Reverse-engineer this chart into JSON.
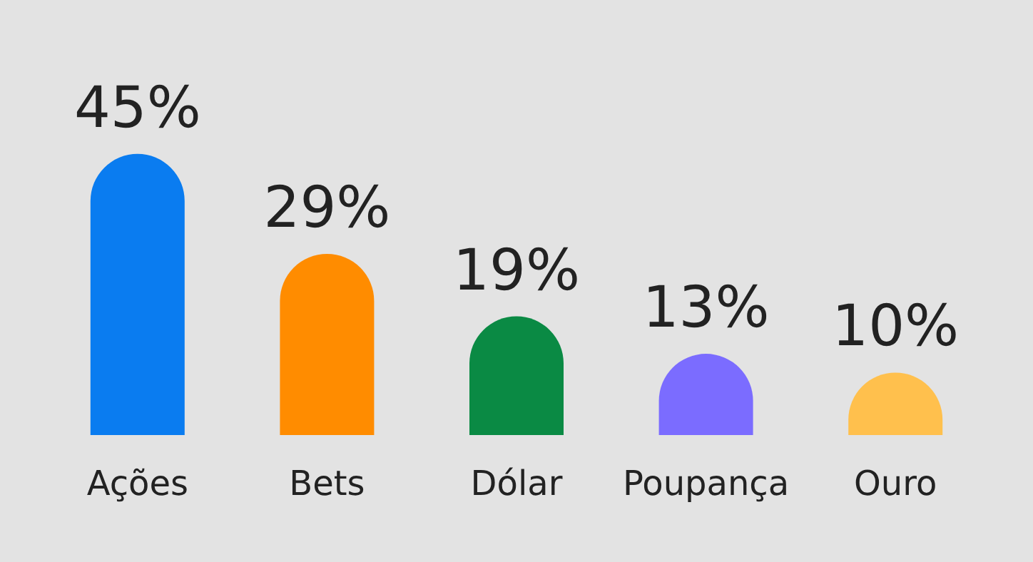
{
  "chart_data": {
    "type": "bar",
    "categories": [
      "Ações",
      "Bets",
      "Dólar",
      "Poupança",
      "Ouro"
    ],
    "values": [
      45,
      29,
      19,
      13,
      10
    ],
    "value_labels": [
      "45%",
      "29%",
      "19%",
      "13%",
      "10%"
    ],
    "colors": [
      "#0a7cf0",
      "#ff8c00",
      "#0a8a44",
      "#7b6cff",
      "#ffc04d"
    ]
  }
}
